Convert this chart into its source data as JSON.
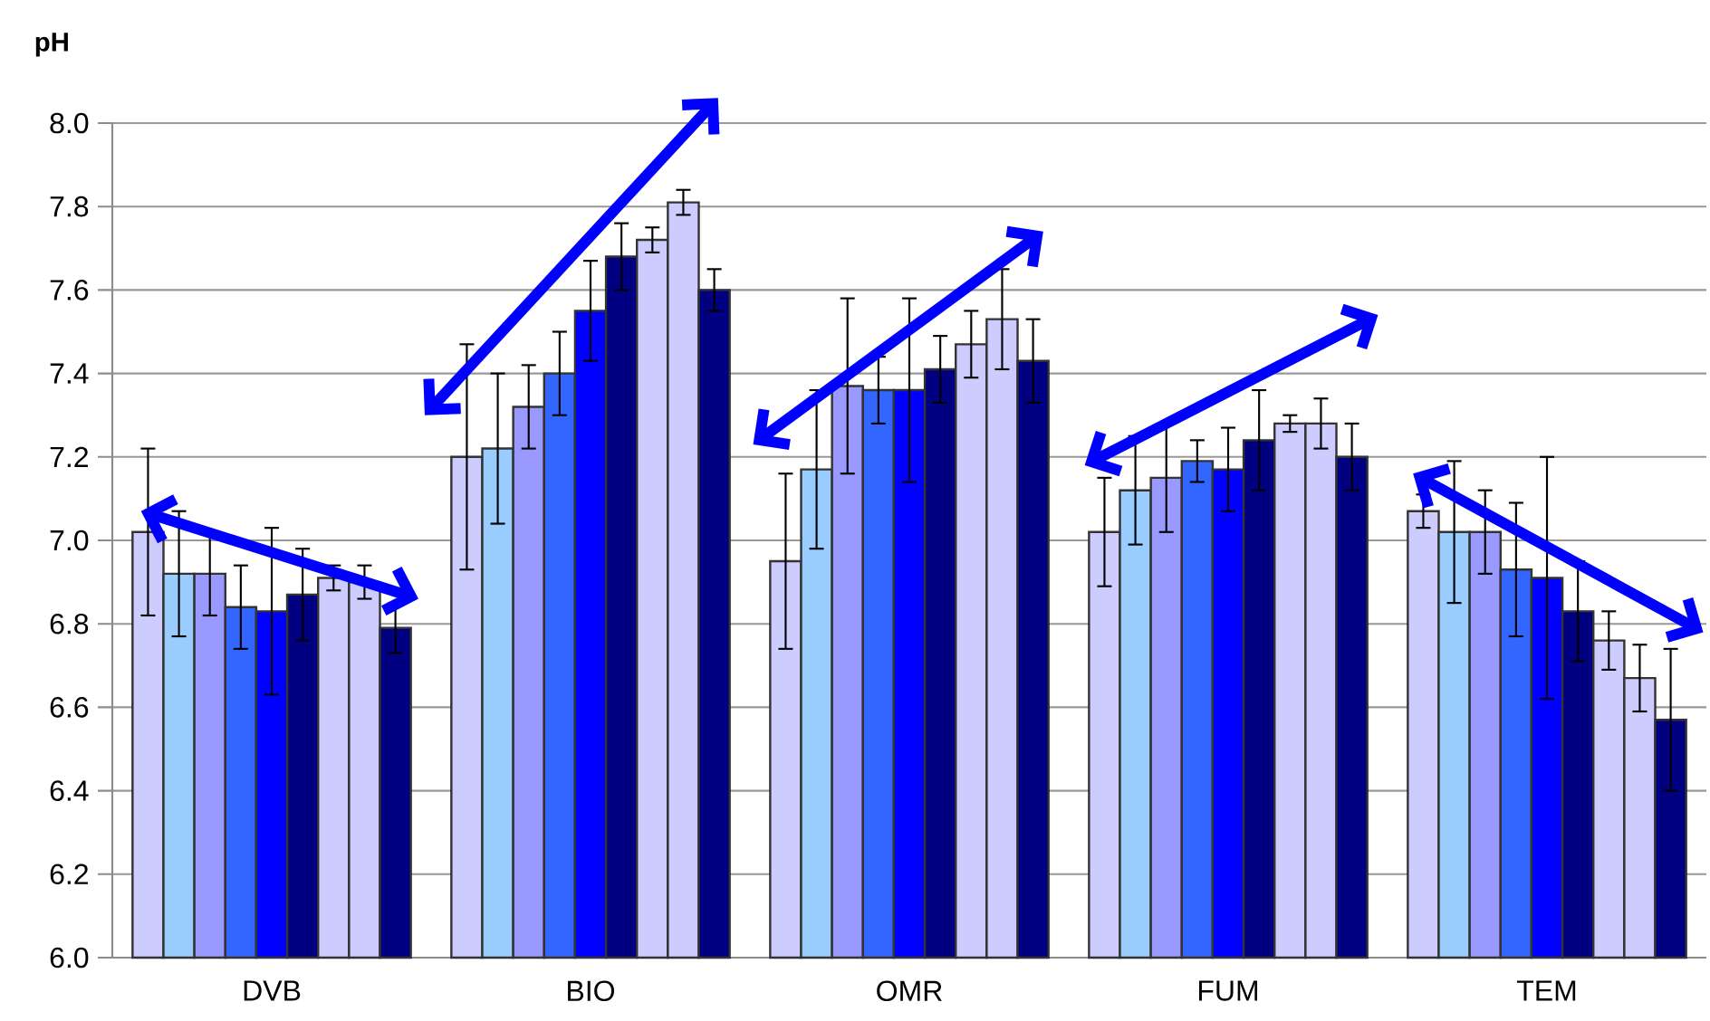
{
  "chart_data": {
    "type": "bar",
    "ylabel": "pH",
    "categories": [
      "DVB",
      "BIO",
      "OMR",
      "FUM",
      "TEM"
    ],
    "series": [
      {
        "color": "#ccccff",
        "values": [
          7.02,
          7.2,
          6.95,
          7.02,
          7.07
        ],
        "errors": [
          0.2,
          0.27,
          0.21,
          0.13,
          0.04
        ]
      },
      {
        "color": "#99ccff",
        "values": [
          6.92,
          7.22,
          7.17,
          7.12,
          7.02
        ],
        "errors": [
          0.15,
          0.18,
          0.19,
          0.13,
          0.17
        ]
      },
      {
        "color": "#9999ff",
        "values": [
          6.92,
          7.32,
          7.37,
          7.15,
          7.02
        ],
        "errors": [
          0.1,
          0.1,
          0.21,
          0.13,
          0.1
        ]
      },
      {
        "color": "#3366ff",
        "values": [
          6.84,
          7.4,
          7.36,
          7.19,
          6.93
        ],
        "errors": [
          0.1,
          0.1,
          0.08,
          0.05,
          0.16
        ]
      },
      {
        "color": "#0000ff",
        "values": [
          6.83,
          7.55,
          7.36,
          7.17,
          6.91
        ],
        "errors": [
          0.2,
          0.12,
          0.22,
          0.1,
          0.29
        ]
      },
      {
        "color": "#000080",
        "values": [
          6.87,
          7.68,
          7.41,
          7.24,
          6.83
        ],
        "errors": [
          0.11,
          0.08,
          0.08,
          0.12,
          0.12
        ]
      },
      {
        "color": "#ccccff",
        "values": [
          6.91,
          7.72,
          7.47,
          7.28,
          6.76
        ],
        "errors": [
          0.03,
          0.03,
          0.08,
          0.02,
          0.07
        ]
      },
      {
        "color": "#ccccff",
        "values": [
          6.9,
          7.81,
          7.53,
          7.28,
          6.67
        ],
        "errors": [
          0.04,
          0.03,
          0.12,
          0.06,
          0.08
        ]
      },
      {
        "color": "#000080",
        "values": [
          6.79,
          7.6,
          7.43,
          7.2,
          6.57
        ],
        "errors": [
          0.06,
          0.05,
          0.1,
          0.08,
          0.17
        ]
      }
    ],
    "ylim": [
      6.0,
      8.0
    ],
    "yticks": [
      {
        "value": 6.0,
        "label": "6.0"
      },
      6.2,
      6.4,
      6.6,
      6.8,
      {
        "value": 7.0,
        "label": "7.0"
      },
      7.2,
      7.4,
      7.6,
      7.8,
      {
        "value": 8.0,
        "label": "8.0"
      }
    ],
    "grid": "y"
  }
}
